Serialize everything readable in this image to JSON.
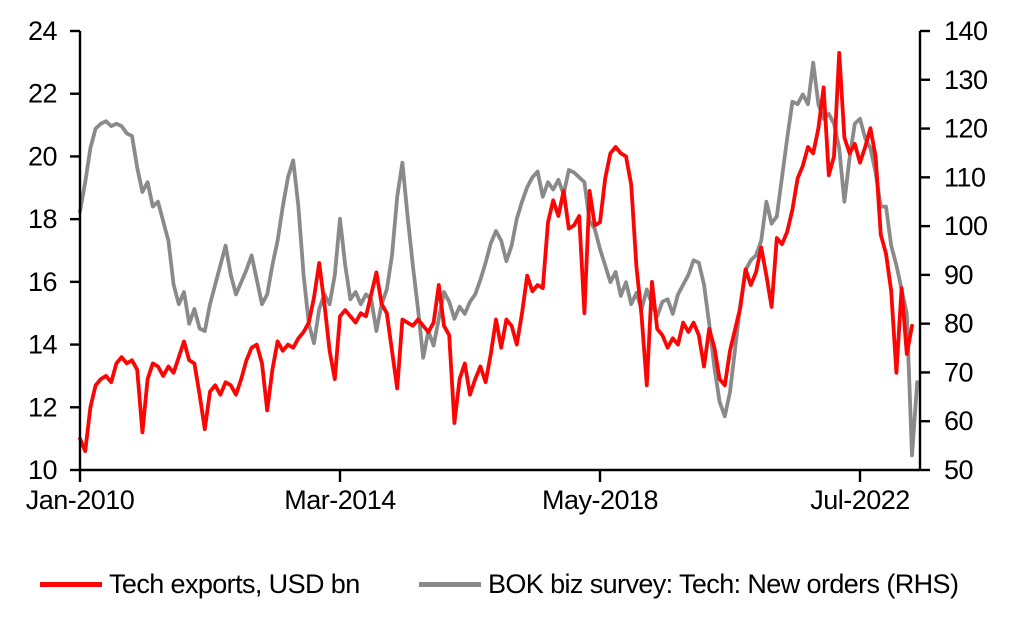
{
  "colors": {
    "background": "#ffffff",
    "axis": "#000000",
    "text": "#000000",
    "tech_exports_line": "#fb0505",
    "bok_survey_line": "#8a8a8a"
  },
  "chart_data": {
    "type": "line",
    "title": "",
    "xlabel": "",
    "ylabel_left": "",
    "ylabel_right": "",
    "grid": false,
    "legend_position": "bottom",
    "frequency": "monthly",
    "start_month": "Jan-2010",
    "x_axis": {
      "tick_labels": [
        "Jan-2010",
        "Mar-2014",
        "May-2018",
        "Jul-2022"
      ],
      "tick_month_index": [
        0,
        50,
        100,
        150
      ]
    },
    "left_axis": {
      "min": 10,
      "max": 24,
      "step": 2,
      "ticks": [
        10,
        12,
        14,
        16,
        18,
        20,
        22,
        24
      ]
    },
    "right_axis": {
      "min": 50,
      "max": 140,
      "step": 10,
      "ticks": [
        50,
        60,
        70,
        80,
        90,
        100,
        110,
        120,
        130,
        140
      ]
    },
    "series": [
      {
        "name": "Tech exports, USD bn",
        "axis": "left",
        "color": "#fb0505",
        "values": [
          11.0,
          10.6,
          12.0,
          12.7,
          12.9,
          13.0,
          12.8,
          13.4,
          13.6,
          13.4,
          13.5,
          13.2,
          11.2,
          12.9,
          13.4,
          13.3,
          13.0,
          13.3,
          13.1,
          13.6,
          14.1,
          13.5,
          13.4,
          12.4,
          11.3,
          12.5,
          12.7,
          12.4,
          12.8,
          12.7,
          12.4,
          12.9,
          13.5,
          13.9,
          14.0,
          13.4,
          11.9,
          13.2,
          14.1,
          13.8,
          14.0,
          13.9,
          14.2,
          14.4,
          14.7,
          15.5,
          16.6,
          15.3,
          13.8,
          12.9,
          14.9,
          15.1,
          14.9,
          14.7,
          15.0,
          14.9,
          15.6,
          16.3,
          15.3,
          15.0,
          13.8,
          12.6,
          14.8,
          14.7,
          14.6,
          14.8,
          14.6,
          14.4,
          14.7,
          15.9,
          14.6,
          14.3,
          11.5,
          12.9,
          13.4,
          12.4,
          12.9,
          13.3,
          12.8,
          13.7,
          14.8,
          13.9,
          14.8,
          14.6,
          14.0,
          15.0,
          16.2,
          15.7,
          15.9,
          15.8,
          17.9,
          18.6,
          18.1,
          18.9,
          17.7,
          17.8,
          18.1,
          15.0,
          18.9,
          17.8,
          17.9,
          19.3,
          20.1,
          20.3,
          20.1,
          20.0,
          19.1,
          16.5,
          14.9,
          12.7,
          16.0,
          14.5,
          14.3,
          13.9,
          14.2,
          14.0,
          14.7,
          14.4,
          14.7,
          14.3,
          13.3,
          14.5,
          13.9,
          12.9,
          12.7,
          13.8,
          14.5,
          15.2,
          16.4,
          15.9,
          16.3,
          17.1,
          16.2,
          15.2,
          17.4,
          17.2,
          17.6,
          18.3,
          19.3,
          19.7,
          20.3,
          20.1,
          20.9,
          22.2,
          19.4,
          20.0,
          23.3,
          20.6,
          20.1,
          20.4,
          19.8,
          20.3,
          20.9,
          20.0,
          17.5,
          16.9,
          15.7,
          13.1,
          15.8,
          13.7,
          14.6
        ]
      },
      {
        "name": "BOK biz survey: Tech: New orders (RHS)",
        "axis": "right",
        "color": "#8a8a8a",
        "values": [
          103,
          109,
          116,
          120,
          121,
          121.5,
          120.5,
          121,
          120.5,
          119,
          118.5,
          112,
          107,
          109,
          104,
          105,
          101,
          97,
          88,
          84,
          86.5,
          80,
          83,
          79,
          78.5,
          84,
          88,
          92,
          96,
          90,
          86,
          88.5,
          91,
          94,
          89,
          84,
          86,
          92,
          97,
          104,
          110,
          113.5,
          104,
          90,
          80,
          76,
          83,
          86,
          84,
          90,
          101.5,
          92,
          85,
          86.5,
          84,
          86,
          85,
          78.5,
          84,
          87,
          94,
          106,
          113,
          102,
          92,
          83,
          73,
          78.5,
          75.5,
          81,
          86.5,
          84.5,
          81,
          83.5,
          82,
          84.5,
          86,
          89,
          92.5,
          96.5,
          99,
          97,
          92.8,
          96,
          101.5,
          105,
          108,
          110,
          111.2,
          106,
          109,
          107.5,
          109.5,
          106.5,
          111.5,
          111,
          110,
          109,
          101,
          99.4,
          95.3,
          91.9,
          88.5,
          90.6,
          85.7,
          88.5,
          84,
          86.3,
          83,
          87,
          84,
          81.5,
          84.5,
          85,
          82,
          86,
          88,
          90,
          93,
          92.5,
          88,
          80,
          71,
          64,
          61,
          66,
          75,
          84,
          91,
          93,
          94,
          97,
          105,
          100.5,
          102,
          110,
          118,
          125.5,
          125,
          127,
          125,
          133.5,
          125,
          122,
          123,
          121,
          116,
          105,
          114,
          121,
          122,
          118,
          116,
          111,
          104,
          104,
          96,
          92,
          87,
          82,
          53,
          68
        ]
      }
    ]
  }
}
